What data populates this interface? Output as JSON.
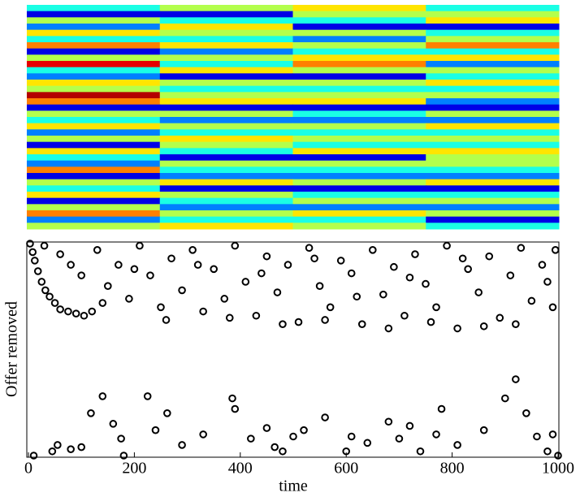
{
  "chart_data": [
    {
      "type": "heatmap",
      "colormap": "jet",
      "xlim": [
        0,
        1000
      ],
      "x": [
        0,
        250,
        500,
        750,
        1000
      ],
      "z": [
        [
          0.4,
          0.55,
          0.65,
          0.4
        ],
        [
          0.1,
          0.1,
          0.55,
          0.55
        ],
        [
          0.55,
          0.4,
          0.4,
          0.65
        ],
        [
          0.25,
          0.65,
          0.1,
          0.1
        ],
        [
          0.65,
          0.55,
          0.55,
          0.4
        ],
        [
          0.4,
          0.4,
          0.25,
          0.55
        ],
        [
          0.75,
          0.65,
          0.55,
          0.75
        ],
        [
          0.1,
          0.25,
          0.4,
          0.4
        ],
        [
          0.55,
          0.55,
          0.65,
          0.65
        ],
        [
          0.9,
          0.4,
          0.75,
          0.25
        ],
        [
          0.4,
          0.65,
          0.55,
          0.55
        ],
        [
          0.25,
          0.1,
          0.1,
          0.4
        ],
        [
          0.65,
          0.55,
          0.55,
          0.65
        ],
        [
          0.55,
          0.4,
          0.4,
          0.4
        ],
        [
          0.95,
          0.55,
          0.55,
          0.55
        ],
        [
          0.75,
          0.65,
          0.65,
          0.25
        ],
        [
          0.1,
          0.1,
          0.1,
          0.1
        ],
        [
          0.55,
          0.55,
          0.4,
          0.55
        ],
        [
          0.4,
          0.25,
          0.25,
          0.25
        ],
        [
          0.65,
          0.55,
          0.55,
          0.65
        ],
        [
          0.25,
          0.4,
          0.4,
          0.4
        ],
        [
          0.55,
          0.65,
          0.55,
          0.55
        ],
        [
          0.1,
          0.55,
          0.4,
          0.4
        ],
        [
          0.65,
          0.4,
          0.65,
          0.65
        ],
        [
          0.4,
          0.1,
          0.1,
          0.55
        ],
        [
          0.25,
          0.55,
          0.55,
          0.55
        ],
        [
          0.75,
          0.4,
          0.4,
          0.4
        ],
        [
          0.1,
          0.25,
          0.25,
          0.25
        ],
        [
          0.55,
          0.65,
          0.55,
          0.65
        ],
        [
          0.4,
          0.1,
          0.1,
          0.1
        ],
        [
          0.65,
          0.55,
          0.4,
          0.4
        ],
        [
          0.1,
          0.4,
          0.55,
          0.55
        ],
        [
          0.55,
          0.25,
          0.25,
          0.25
        ],
        [
          0.75,
          0.55,
          0.65,
          0.55
        ],
        [
          0.25,
          0.4,
          0.4,
          0.1
        ],
        [
          0.55,
          0.65,
          0.55,
          0.4
        ]
      ]
    },
    {
      "type": "scatter",
      "y_label": "Offer removed",
      "x_label": "time",
      "xlim": [
        0,
        1000
      ],
      "ylim": [
        0,
        1
      ],
      "xticks": [
        0,
        200,
        400,
        600,
        800,
        1000
      ],
      "color": "#000000",
      "x": [
        3,
        8,
        12,
        18,
        25,
        32,
        40,
        50,
        60,
        75,
        90,
        105,
        120,
        30,
        60,
        80,
        100,
        130,
        150,
        170,
        190,
        210,
        230,
        250,
        270,
        290,
        310,
        330,
        350,
        370,
        390,
        410,
        430,
        450,
        470,
        490,
        510,
        530,
        550,
        570,
        590,
        610,
        630,
        650,
        670,
        690,
        710,
        730,
        750,
        770,
        790,
        810,
        830,
        850,
        870,
        890,
        910,
        930,
        950,
        970,
        990,
        995,
        140,
        260,
        380,
        480,
        560,
        680,
        760,
        860,
        920,
        200,
        320,
        440,
        540,
        620,
        720,
        820,
        980,
        10,
        45,
        55,
        80,
        100,
        118,
        140,
        160,
        175,
        180,
        225,
        240,
        262,
        290,
        330,
        385,
        390,
        420,
        450,
        480,
        500,
        520,
        560,
        600,
        640,
        680,
        700,
        740,
        770,
        780,
        810,
        860,
        900,
        920,
        940,
        960,
        980,
        1000,
        990,
        720,
        610,
        465
      ],
      "y": [
        1,
        0.96,
        0.92,
        0.87,
        0.82,
        0.78,
        0.75,
        0.72,
        0.69,
        0.68,
        0.67,
        0.66,
        0.68,
        0.99,
        0.95,
        0.9,
        0.85,
        0.97,
        0.8,
        0.9,
        0.74,
        0.99,
        0.85,
        0.7,
        0.93,
        0.78,
        0.97,
        0.68,
        0.88,
        0.74,
        0.99,
        0.82,
        0.66,
        0.94,
        0.77,
        0.9,
        0.63,
        0.98,
        0.8,
        0.7,
        0.92,
        0.86,
        0.62,
        0.97,
        0.76,
        0.89,
        0.66,
        0.95,
        0.81,
        0.7,
        0.99,
        0.6,
        0.88,
        0.77,
        0.94,
        0.65,
        0.85,
        0.98,
        0.73,
        0.9,
        0.7,
        0.97,
        0.72,
        0.64,
        0.65,
        0.62,
        0.64,
        0.6,
        0.63,
        0.61,
        0.62,
        0.88,
        0.9,
        0.86,
        0.93,
        0.75,
        0.84,
        0.93,
        0.82,
        0,
        0.02,
        0.05,
        0.03,
        0.04,
        0.2,
        0.28,
        0.15,
        0.08,
        0,
        0.28,
        0.12,
        0.2,
        0.05,
        0.1,
        0.27,
        0.22,
        0.08,
        0.13,
        0.02,
        0.09,
        0.12,
        0.18,
        0.02,
        0.06,
        0.16,
        0.08,
        0.02,
        0.1,
        0.22,
        0.05,
        0.12,
        0.27,
        0.36,
        0.2,
        0.09,
        0.02,
        0,
        0.1,
        0.14,
        0.09,
        0.04
      ]
    }
  ]
}
